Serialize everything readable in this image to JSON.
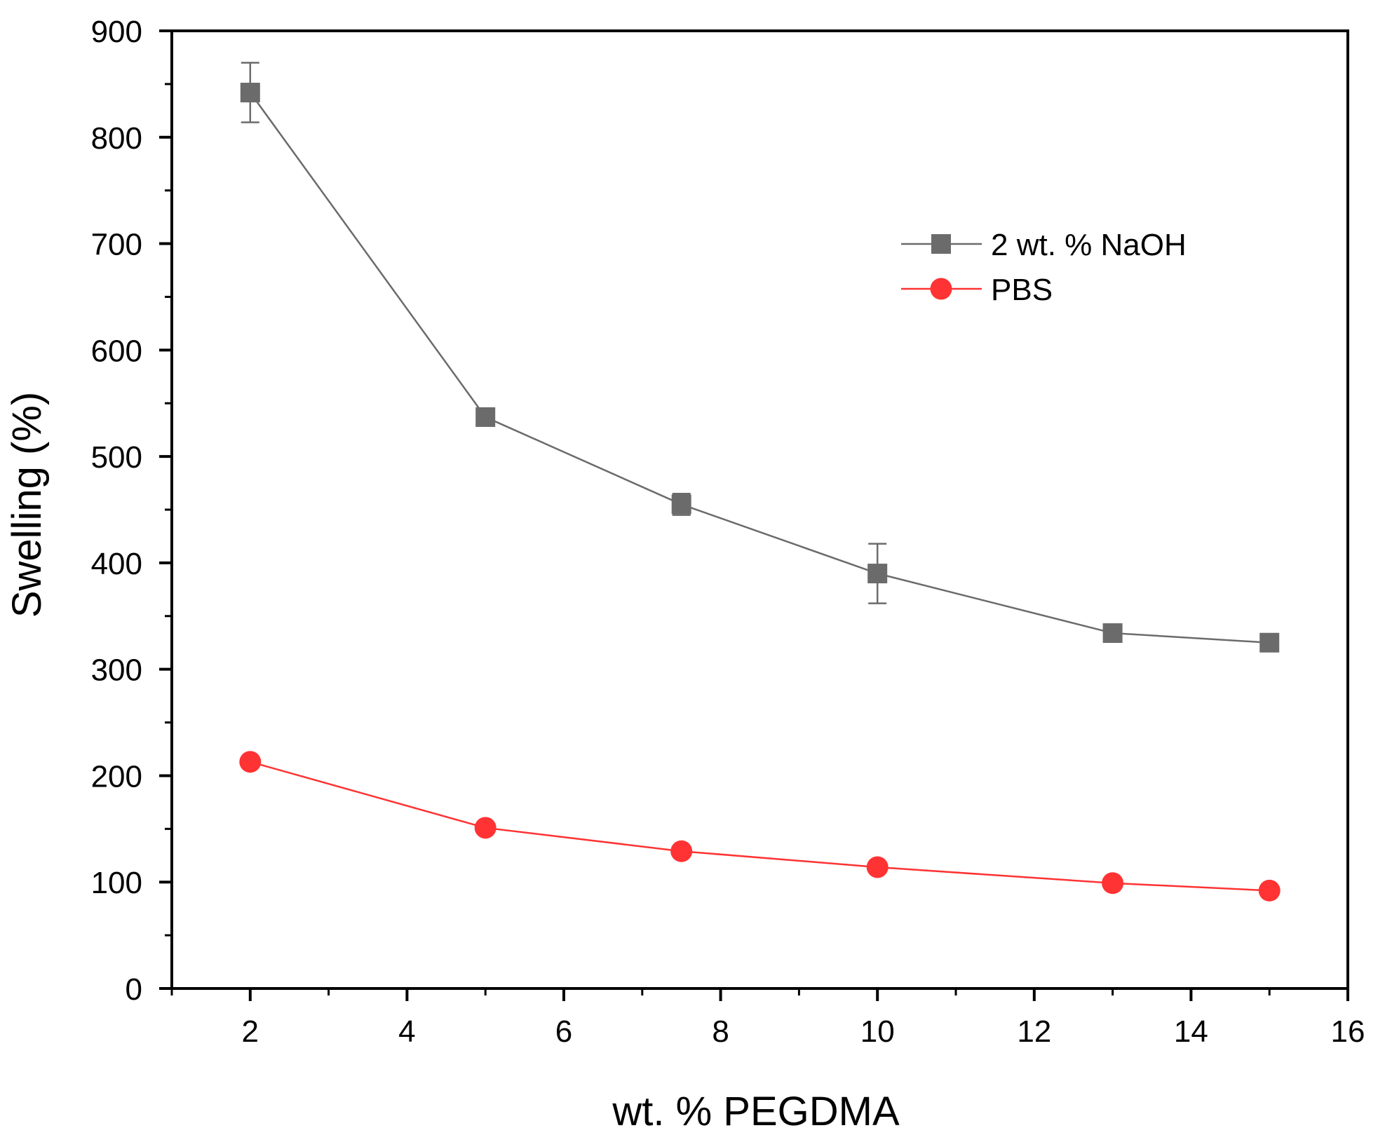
{
  "chart_data": {
    "type": "line",
    "title": "",
    "xlabel": "wt. % PEGDMA",
    "ylabel": "Swelling (%)",
    "xlim": [
      1,
      16
    ],
    "ylim": [
      0,
      900
    ],
    "xticks": [
      2,
      4,
      6,
      8,
      10,
      12,
      14,
      16
    ],
    "yticks": [
      0,
      100,
      200,
      300,
      400,
      500,
      600,
      700,
      800,
      900
    ],
    "grid": false,
    "legend_position": "top-right",
    "series": [
      {
        "name": "2 wt. % NaOH",
        "marker": "square",
        "color": "#6b6b6b",
        "x": [
          2,
          5,
          7.5,
          10,
          13,
          15
        ],
        "y": [
          842,
          537,
          455,
          390,
          334,
          325
        ],
        "yerr": [
          28,
          4,
          10,
          28,
          4,
          4
        ]
      },
      {
        "name": "PBS",
        "marker": "circle",
        "color": "#ff3333",
        "x": [
          2,
          5,
          7.5,
          10,
          13,
          15
        ],
        "y": [
          213,
          151,
          129,
          114,
          99,
          92
        ],
        "yerr": [
          0,
          0,
          0,
          0,
          0,
          0
        ]
      }
    ]
  }
}
